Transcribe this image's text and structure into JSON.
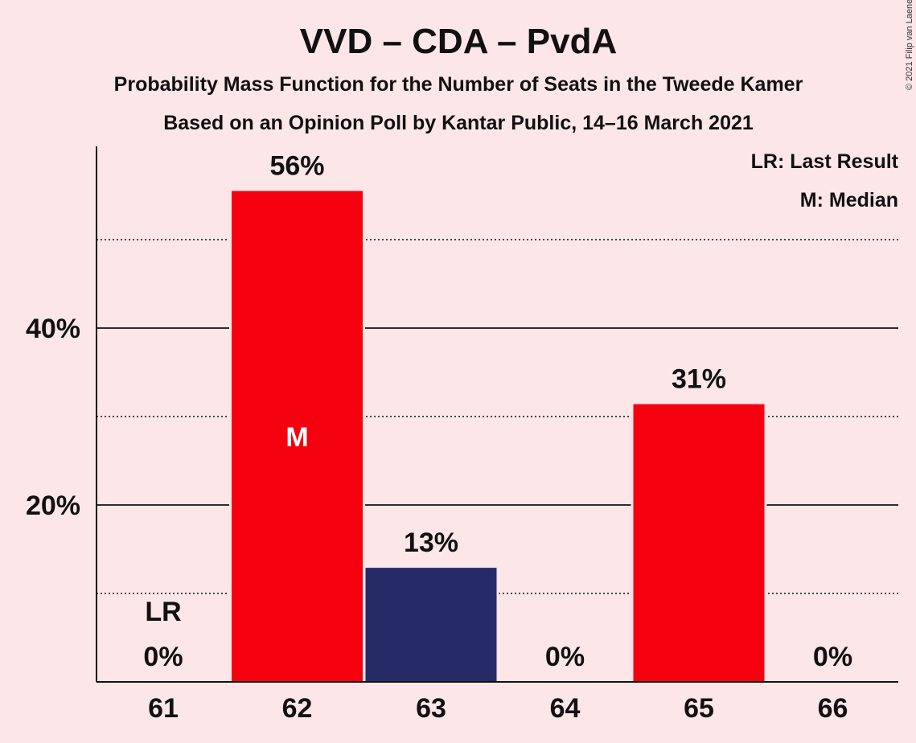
{
  "title": "VVD – CDA – PvdA",
  "subtitle1": "Probability Mass Function for the Number of Seats in the Tweede Kamer",
  "subtitle2": "Based on an Opinion Poll by Kantar Public, 14–16 March 2021",
  "copyright": "© 2021 Filip van Laenen",
  "legend": {
    "lr": "LR: Last Result",
    "m": "M: Median"
  },
  "colors": {
    "background": "#fce6e8",
    "red": "#f5000f",
    "navy": "#262b68"
  },
  "chart_data": {
    "type": "bar",
    "categories": [
      "61",
      "62",
      "63",
      "64",
      "65",
      "66"
    ],
    "values": [
      0,
      55.5,
      12.9,
      0,
      31.4,
      0
    ],
    "value_labels": [
      "0%",
      "56%",
      "13%",
      "0%",
      "31%",
      "0%"
    ],
    "bar_colors": [
      "red",
      "red",
      "navy",
      "red",
      "red",
      "red"
    ],
    "median_category": "62",
    "median_marker": "M",
    "last_result_category": "61",
    "last_result_marker": "LR",
    "ylim": [
      0,
      60
    ],
    "y_ticks_major": [
      20,
      40
    ],
    "y_tick_labels": [
      "20%",
      "40%"
    ],
    "y_ticks_minor": [
      10,
      30,
      50
    ],
    "legend_position": "top-right"
  }
}
